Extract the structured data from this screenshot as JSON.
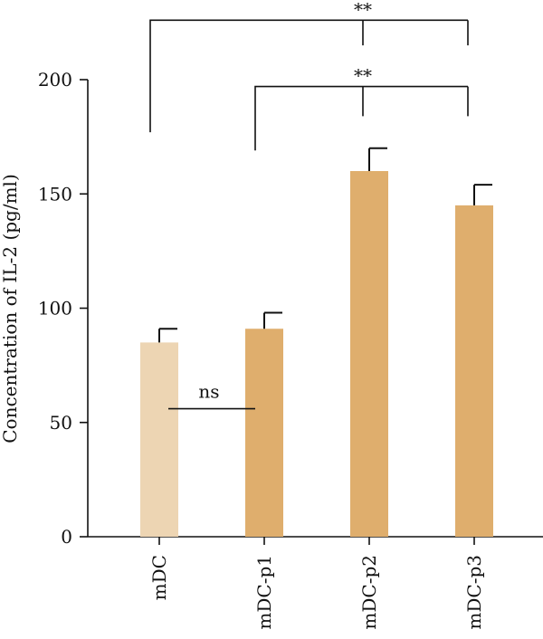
{
  "chart_data": {
    "type": "bar",
    "title": "",
    "xlabel": "",
    "ylabel": "Concentration of IL-2 (pg/ml)",
    "ylim": [
      0,
      200
    ],
    "yticks": [
      0,
      50,
      100,
      150,
      200
    ],
    "grid": false,
    "categories": [
      "mDC",
      "mDC-p1",
      "mDC-p2",
      "mDC-p3"
    ],
    "values": [
      85,
      91,
      160,
      145
    ],
    "errors": [
      6,
      7,
      10,
      9
    ],
    "colors": [
      "#EDD5B3",
      "#DFAE6D",
      "#DFAE6D",
      "#DFAE6D"
    ],
    "annotations": [
      {
        "type": "line",
        "from": 0,
        "to": 1,
        "y": 56,
        "label": "ns"
      },
      {
        "type": "bracket",
        "left": 1,
        "rights": [
          2,
          3
        ],
        "left_y": 169,
        "right_y": 184,
        "top": 197,
        "label": "**"
      },
      {
        "type": "bracket",
        "left": 0,
        "rights": [
          2,
          3
        ],
        "left_y": 177,
        "right_y": 215,
        "top": 226,
        "label": "**"
      }
    ]
  }
}
